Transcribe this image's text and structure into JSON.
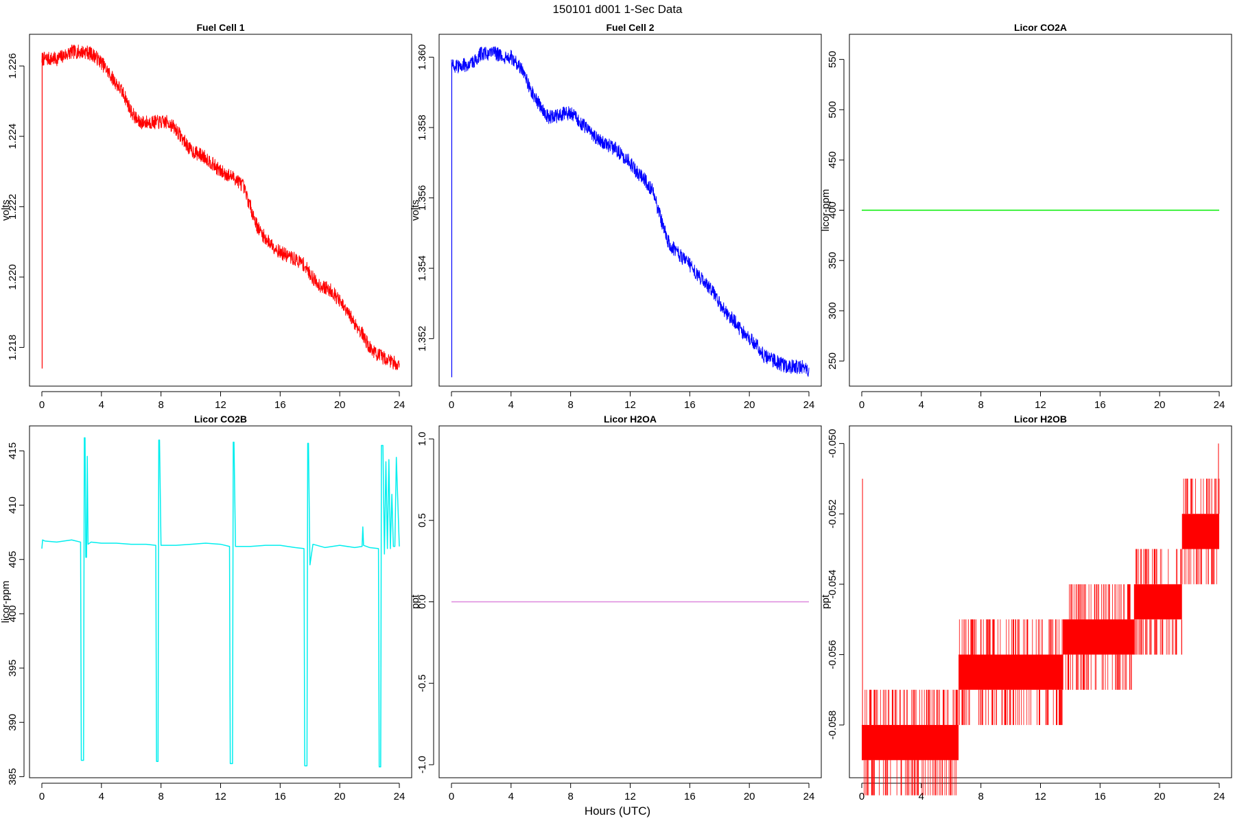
{
  "main_title": "150101    d001    1-Sec Data",
  "x_label": "Hours (UTC)",
  "chart_data": [
    {
      "type": "line",
      "title": "Fuel Cell 1",
      "ylabel": "volts",
      "xlabel": "Hours (UTC)",
      "color": "#ff0000",
      "xlim": [
        0,
        24
      ],
      "ylim": [
        1.2169,
        1.2269
      ],
      "xticks": [
        0,
        4,
        8,
        12,
        16,
        20,
        24
      ],
      "yticks": [
        1.218,
        1.22,
        1.222,
        1.224,
        1.226
      ],
      "ytick_labels": [
        "1.218",
        "1.220",
        "1.222",
        "1.224",
        "1.226"
      ],
      "x": [
        0,
        0.5,
        1,
        1.5,
        2,
        2.5,
        3,
        3.5,
        4,
        4.5,
        5,
        5.5,
        6,
        6.5,
        7,
        7.5,
        8,
        8.5,
        9,
        9.5,
        10,
        10.5,
        11,
        11.5,
        12,
        12.5,
        13,
        13.5,
        14,
        14.5,
        15,
        15.5,
        16,
        16.5,
        17,
        17.5,
        18,
        18.5,
        19,
        19.5,
        20,
        20.5,
        21,
        21.5,
        22,
        22.5,
        23,
        23.5,
        24
      ],
      "y": [
        1.2262,
        1.2262,
        1.2262,
        1.2263,
        1.2264,
        1.2264,
        1.2264,
        1.2263,
        1.2261,
        1.2258,
        1.2255,
        1.2252,
        1.2247,
        1.2244,
        1.2244,
        1.2244,
        1.2244,
        1.2244,
        1.2242,
        1.2239,
        1.2236,
        1.2235,
        1.2234,
        1.2232,
        1.223,
        1.2229,
        1.2228,
        1.2226,
        1.222,
        1.2214,
        1.2211,
        1.2209,
        1.2207,
        1.2206,
        1.2205,
        1.2204,
        1.2201,
        1.2198,
        1.2197,
        1.2196,
        1.2193,
        1.219,
        1.2187,
        1.2184,
        1.218,
        1.2178,
        1.2177,
        1.2176,
        1.2175
      ],
      "noise": 0.0002,
      "start_spike": 1.2174
    },
    {
      "type": "line",
      "title": "Fuel Cell 2",
      "ylabel": "volts",
      "xlabel": "Hours (UTC)",
      "color": "#0000ff",
      "xlim": [
        0,
        24
      ],
      "ylim": [
        1.35065,
        1.36065
      ],
      "xticks": [
        0,
        4,
        8,
        12,
        16,
        20,
        24
      ],
      "yticks": [
        1.352,
        1.354,
        1.356,
        1.358,
        1.36
      ],
      "ytick_labels": [
        "1.352",
        "1.354",
        "1.356",
        "1.358",
        "1.360"
      ],
      "x": [
        0,
        0.5,
        1,
        1.5,
        2,
        2.5,
        3,
        3.5,
        4,
        4.5,
        5,
        5.5,
        6,
        6.5,
        7,
        7.5,
        8,
        8.5,
        9,
        9.5,
        10,
        10.5,
        11,
        11.5,
        12,
        12.5,
        13,
        13.5,
        14,
        14.5,
        15,
        15.5,
        16,
        16.5,
        17,
        17.5,
        18,
        18.5,
        19,
        19.5,
        20,
        20.5,
        21,
        21.5,
        22,
        22.5,
        23,
        23.5,
        24
      ],
      "y": [
        1.3598,
        1.3597,
        1.3598,
        1.3599,
        1.3601,
        1.3601,
        1.3601,
        1.36,
        1.36,
        1.3598,
        1.3594,
        1.3589,
        1.3586,
        1.3583,
        1.3583,
        1.3584,
        1.3584,
        1.3582,
        1.358,
        1.3578,
        1.3576,
        1.3575,
        1.3574,
        1.3572,
        1.357,
        1.3567,
        1.3565,
        1.3562,
        1.3555,
        1.3548,
        1.3545,
        1.3543,
        1.3541,
        1.3538,
        1.3536,
        1.3534,
        1.353,
        1.3527,
        1.3525,
        1.3522,
        1.352,
        1.3518,
        1.3515,
        1.3514,
        1.3513,
        1.3512,
        1.3512,
        1.3512,
        1.3511
      ],
      "noise": 0.0002,
      "start_spike": 1.3509
    },
    {
      "type": "line",
      "title": "Licor CO2A",
      "ylabel": "licor-ppm",
      "xlabel": "Hours (UTC)",
      "color": "#00ee00",
      "xlim": [
        0,
        24
      ],
      "ylim": [
        225,
        575
      ],
      "xticks": [
        0,
        4,
        8,
        12,
        16,
        20,
        24
      ],
      "yticks": [
        250,
        300,
        350,
        400,
        450,
        500,
        550
      ],
      "ytick_labels": [
        "250",
        "300",
        "350",
        "400",
        "450",
        "500",
        "550"
      ],
      "x": [
        0,
        24
      ],
      "y": [
        400,
        400
      ]
    },
    {
      "type": "line",
      "title": "Licor CO2B",
      "ylabel": "licor-ppm",
      "xlabel": "Hours (UTC)",
      "color": "#00eeee",
      "xlim": [
        0,
        24
      ],
      "ylim": [
        384.9,
        417.3
      ],
      "xticks": [
        0,
        4,
        8,
        12,
        16,
        20,
        24
      ],
      "yticks": [
        385,
        390,
        395,
        400,
        405,
        410,
        415
      ],
      "ytick_labels": [
        "385",
        "390",
        "395",
        "400",
        "405",
        "410",
        "415"
      ],
      "x": [
        0,
        0.05,
        0.2,
        1.0,
        2.0,
        2.6,
        2.65,
        2.8,
        2.85,
        2.9,
        2.95,
        3.0,
        3.05,
        3.1,
        3.3,
        4.0,
        5.0,
        6.0,
        7.0,
        7.65,
        7.7,
        7.8,
        7.85,
        7.9,
        8.0,
        9.0,
        10.0,
        11.0,
        12.0,
        12.6,
        12.65,
        12.8,
        12.85,
        12.9,
        13.0,
        14.0,
        15.0,
        16.0,
        17.0,
        17.6,
        17.65,
        17.8,
        17.85,
        17.9,
        18.0,
        18.2,
        19.0,
        20.0,
        21.0,
        21.5,
        21.55,
        21.6,
        22.0,
        22.6,
        22.65,
        22.75,
        22.8,
        22.9,
        23.0,
        23.1,
        23.2,
        23.3,
        23.4,
        23.5,
        23.6,
        23.7,
        23.8,
        24.0
      ],
      "y": [
        406.0,
        406.8,
        406.7,
        406.6,
        406.8,
        406.6,
        386.5,
        386.5,
        416.2,
        416.2,
        405.2,
        405.2,
        414.5,
        406.4,
        406.6,
        406.5,
        406.5,
        406.4,
        406.4,
        406.3,
        386.4,
        386.4,
        416.0,
        416.0,
        406.3,
        406.3,
        406.4,
        406.5,
        406.4,
        406.2,
        386.2,
        386.2,
        415.8,
        415.8,
        406.2,
        406.2,
        406.3,
        406.3,
        406.1,
        406.0,
        386.0,
        386.0,
        415.7,
        415.7,
        404.5,
        406.4,
        406.1,
        406.3,
        406.1,
        406.2,
        408.0,
        406.3,
        406.1,
        406.0,
        385.9,
        385.9,
        415.5,
        415.5,
        405.5,
        414.0,
        406.0,
        414.2,
        406.0,
        411.0,
        406.2,
        406.2,
        414.4,
        406.2
      ]
    },
    {
      "type": "line",
      "title": "Licor H2OA",
      "ylabel": "ppt",
      "xlabel": "Hours (UTC)",
      "color": "#dd88dd",
      "xlim": [
        0,
        24
      ],
      "ylim": [
        -1.08,
        1.08
      ],
      "xticks": [
        0,
        4,
        8,
        12,
        16,
        20,
        24
      ],
      "yticks": [
        -1.0,
        -0.5,
        0.0,
        0.5,
        1.0
      ],
      "ytick_labels": [
        "-1.0",
        "-0.5",
        "0.0",
        "0.5",
        "1.0"
      ],
      "x": [
        0,
        24
      ],
      "y": [
        0,
        0
      ]
    },
    {
      "type": "line",
      "title": "Licor H2OB",
      "ylabel": "ppt",
      "xlabel": "Hours (UTC)",
      "color": "#ff0000",
      "xlim": [
        0,
        24
      ],
      "ylim": [
        -0.0595,
        -0.0495
      ],
      "xticks": [
        0,
        4,
        8,
        12,
        16,
        20,
        24
      ],
      "yticks": [
        -0.058,
        -0.056,
        -0.054,
        -0.052,
        -0.05
      ],
      "ytick_labels": [
        "-0.058",
        "-0.056",
        "-0.054",
        "-0.052",
        "-0.050"
      ],
      "steps": [
        {
          "from": 0,
          "to": 6.5,
          "low": -0.059,
          "high": -0.058
        },
        {
          "from": 6.5,
          "to": 13.5,
          "low": -0.057,
          "high": -0.056
        },
        {
          "from": 13.5,
          "to": 18.3,
          "low": -0.056,
          "high": -0.055
        },
        {
          "from": 18.3,
          "to": 21.5,
          "low": -0.055,
          "high": -0.054
        },
        {
          "from": 21.5,
          "to": 24,
          "low": -0.053,
          "high": -0.052
        }
      ],
      "spikes": [
        {
          "x": 0.05,
          "low": -0.059,
          "high": -0.051
        },
        {
          "x": 23.95,
          "low": -0.053,
          "high": -0.05
        }
      ]
    }
  ]
}
